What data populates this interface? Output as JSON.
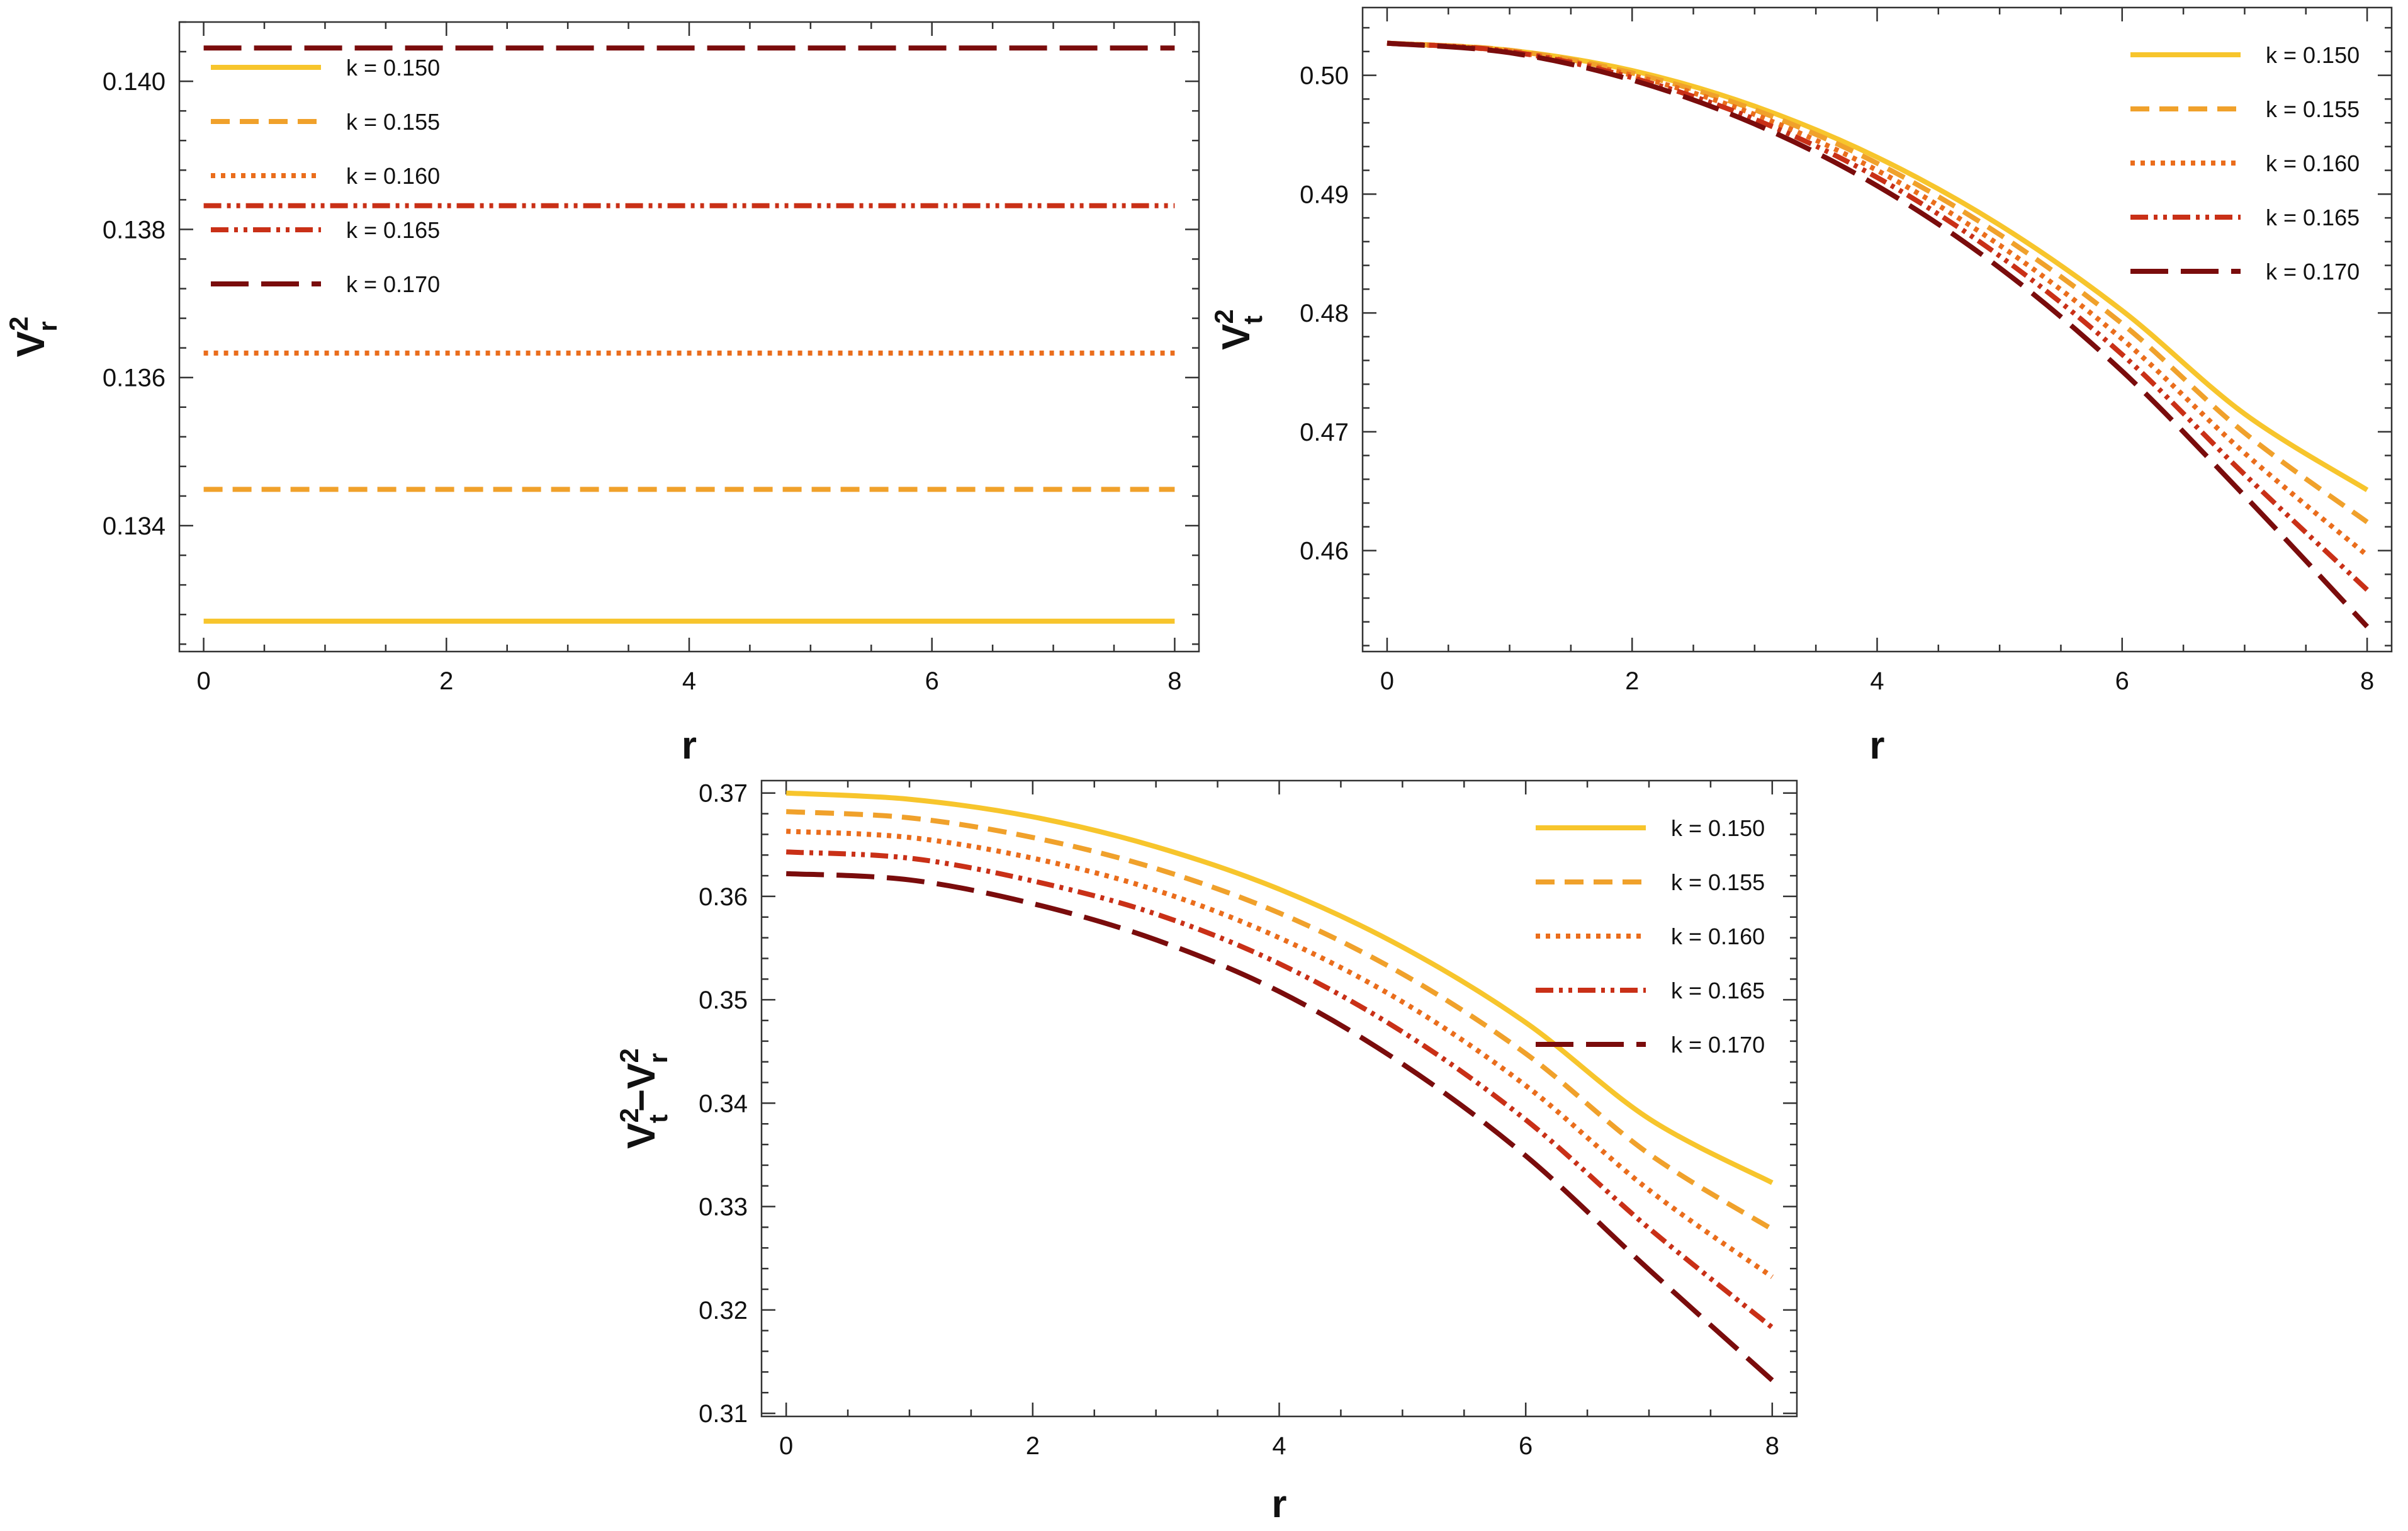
{
  "legend_labels": [
    "k = 0.150",
    "k = 0.155",
    "k = 0.160",
    "k = 0.165",
    "k = 0.170"
  ],
  "series_colors": [
    "#f7c52c",
    "#f0a12b",
    "#ea6d1c",
    "#c93017",
    "#7a0c0c"
  ],
  "series_dash": [
    "solid",
    "dashed",
    "dotted",
    "dash-dot-dot",
    "long-dash"
  ],
  "chart_data": [
    {
      "type": "line",
      "xlabel": "r",
      "ylabel_base": "V",
      "ylabel_sub": "r",
      "ylabel_sup": "2",
      "xlim": [
        -0.2,
        8.2
      ],
      "ylim": [
        0.1323,
        0.1408
      ],
      "x_ticks": [
        "0",
        "2",
        "4",
        "6",
        "8"
      ],
      "y_ticks": [
        "0.134",
        "0.136",
        "0.138",
        "0.140"
      ],
      "legend_position": "top-left",
      "x": [
        0,
        8
      ],
      "series": [
        {
          "name": "k = 0.150",
          "values": [
            0.13271,
            0.13271
          ]
        },
        {
          "name": "k = 0.155",
          "values": [
            0.13449,
            0.13449
          ]
        },
        {
          "name": "k = 0.160",
          "values": [
            0.13633,
            0.13633
          ]
        },
        {
          "name": "k = 0.165",
          "values": [
            0.13832,
            0.13832
          ]
        },
        {
          "name": "k = 0.170",
          "values": [
            0.14045,
            0.14045
          ]
        }
      ]
    },
    {
      "type": "line",
      "xlabel": "r",
      "ylabel_base": "V",
      "ylabel_sub": "t",
      "ylabel_sup": "2",
      "xlim": [
        -0.2,
        8.2
      ],
      "ylim": [
        0.4515,
        0.5057
      ],
      "x_ticks": [
        "0",
        "2",
        "4",
        "6",
        "8"
      ],
      "y_ticks": [
        "0.46",
        "0.47",
        "0.48",
        "0.49",
        "0.50"
      ],
      "legend_position": "top-right",
      "x": [
        0,
        1,
        2,
        3,
        4,
        5,
        6,
        7,
        8
      ],
      "series": [
        {
          "name": "k = 0.150",
          "values": [
            0.5027,
            0.5021,
            0.5004,
            0.4974,
            0.4931,
            0.4874,
            0.4802,
            0.4715,
            0.4651
          ]
        },
        {
          "name": "k = 0.155",
          "values": [
            0.5027,
            0.5021,
            0.5002,
            0.4971,
            0.4926,
            0.4866,
            0.4791,
            0.4699,
            0.4624
          ]
        },
        {
          "name": "k = 0.160",
          "values": [
            0.5027,
            0.502,
            0.5,
            0.4967,
            0.492,
            0.4857,
            0.4778,
            0.4682,
            0.4596
          ]
        },
        {
          "name": "k = 0.165",
          "values": [
            0.5027,
            0.502,
            0.4998,
            0.4963,
            0.4914,
            0.4848,
            0.4765,
            0.4664,
            0.4567
          ]
        },
        {
          "name": "k = 0.170",
          "values": [
            0.5027,
            0.5019,
            0.4996,
            0.4959,
            0.4907,
            0.4838,
            0.4751,
            0.4646,
            0.4536
          ]
        }
      ]
    },
    {
      "type": "line",
      "xlabel": "r",
      "ylabel_base": "V",
      "ylabel_sub": "t",
      "ylabel_sup": "2",
      "ylabel_minus": "−",
      "ylabel_base2": "V",
      "ylabel_sub2": "r",
      "ylabel_sup2": "2",
      "xlim": [
        -0.2,
        8.2
      ],
      "ylim": [
        0.3097,
        0.3712
      ],
      "x_ticks": [
        "0",
        "2",
        "4",
        "6",
        "8"
      ],
      "y_ticks": [
        "0.31",
        "0.32",
        "0.33",
        "0.34",
        "0.35",
        "0.36",
        "0.37"
      ],
      "legend_position": "top-right",
      "x": [
        0,
        1,
        2,
        3,
        4,
        5,
        6,
        7,
        8
      ],
      "series": [
        {
          "name": "k = 0.150",
          "values": [
            0.37,
            0.3694,
            0.3677,
            0.3648,
            0.3607,
            0.3551,
            0.3478,
            0.3385,
            0.3323
          ]
        },
        {
          "name": "k = 0.155",
          "values": [
            0.3682,
            0.3676,
            0.3657,
            0.3627,
            0.3584,
            0.3525,
            0.3448,
            0.3351,
            0.3278
          ]
        },
        {
          "name": "k = 0.160",
          "values": [
            0.3663,
            0.3657,
            0.3637,
            0.3606,
            0.356,
            0.3498,
            0.3417,
            0.3316,
            0.3232
          ]
        },
        {
          "name": "k = 0.165",
          "values": [
            0.3643,
            0.3637,
            0.3615,
            0.3583,
            0.3535,
            0.3469,
            0.3384,
            0.3279,
            0.3183
          ]
        },
        {
          "name": "k = 0.170",
          "values": [
            0.3622,
            0.3616,
            0.3593,
            0.3558,
            0.3508,
            0.3438,
            0.3349,
            0.3239,
            0.3132
          ]
        }
      ]
    }
  ]
}
